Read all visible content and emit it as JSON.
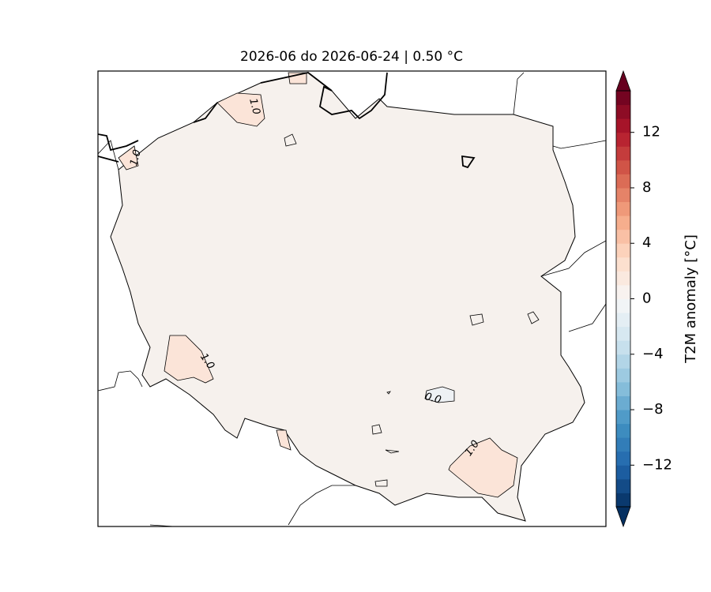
{
  "map": {
    "title": "2026-06 do 2026-06-24 | 0.50 °C",
    "contour_labels": [
      "1.0",
      "1.0",
      "1.0",
      "0.0",
      "1.0"
    ],
    "colorbar": {
      "label": "T2M anomaly [°C]",
      "lim": [
        -15,
        15
      ],
      "ticks": [
        {
          "value": -12,
          "label": "−12"
        },
        {
          "value": -8,
          "label": "−8"
        },
        {
          "value": -4,
          "label": "−4"
        },
        0,
        4,
        8,
        12
      ],
      "levels": 30,
      "colors": [
        "#053061",
        "#2166ac",
        "#4393c3",
        "#92c5de",
        "#d1e5f0",
        "#f7f7f7",
        "#fddbc7",
        "#f4a582",
        "#d6604d",
        "#b2182b",
        "#67001f"
      ]
    }
  }
}
